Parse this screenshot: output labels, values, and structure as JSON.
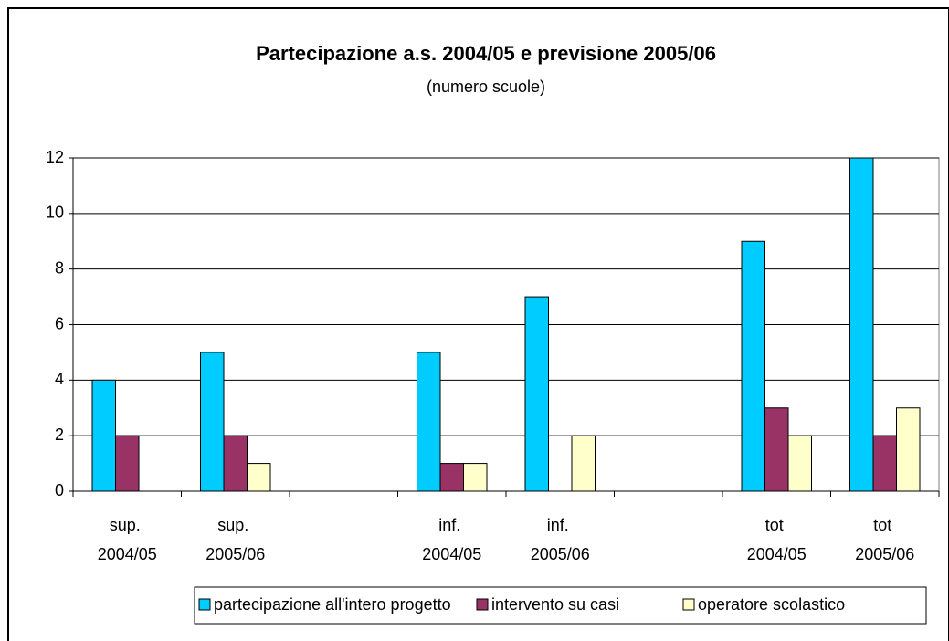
{
  "chart_data": {
    "type": "bar",
    "title": "Partecipazione a.s. 2004/05 e previsione 2005/06",
    "subtitle": "(numero scuole)",
    "categories": [
      "sup. 2004/05",
      "sup. 2005/06",
      null,
      "inf. 2004/05",
      "inf. 2005/06",
      null,
      "tot 2004/05",
      "tot 2005/06"
    ],
    "series": [
      {
        "name": "partecipazione all'intero progetto",
        "color": "#00ccff",
        "values": [
          4,
          5,
          null,
          5,
          7,
          null,
          9,
          12
        ]
      },
      {
        "name": "intervento su casi",
        "color": "#993366",
        "values": [
          2,
          2,
          null,
          1,
          null,
          null,
          3,
          2
        ]
      },
      {
        "name": "operatore scolastico",
        "color": "#ffffcc",
        "values": [
          null,
          1,
          null,
          1,
          2,
          null,
          2,
          3
        ]
      }
    ],
    "ylim": [
      0,
      12
    ],
    "yticks": [
      0,
      2,
      4,
      6,
      8,
      10,
      12
    ],
    "grid": true,
    "legend": "bottom"
  }
}
